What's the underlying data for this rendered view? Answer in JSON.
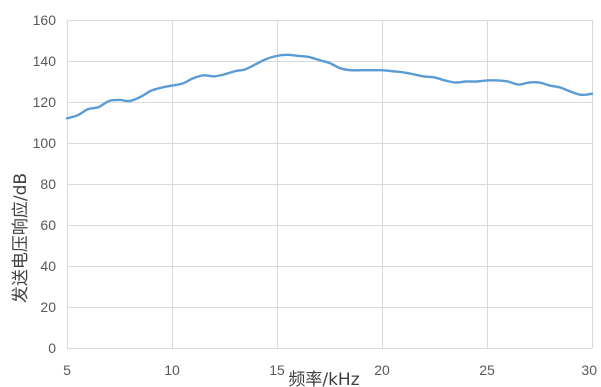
{
  "chart_data": {
    "type": "line",
    "title": "",
    "xlabel": "频率/kHz",
    "ylabel": "发送电压响应/dB",
    "xlim": [
      5,
      30
    ],
    "ylim": [
      0,
      160
    ],
    "x_ticks": [
      5,
      10,
      15,
      20,
      25,
      30
    ],
    "y_ticks": [
      0,
      20,
      40,
      60,
      80,
      100,
      120,
      140,
      160
    ],
    "grid": "both",
    "legend": "none",
    "series": [
      {
        "color": "#5b9bd5",
        "x": [
          5,
          5.5,
          6,
          6.5,
          7,
          7.5,
          8,
          8.5,
          9,
          9.5,
          10,
          10.5,
          11,
          11.5,
          12,
          12.5,
          13,
          13.5,
          14,
          14.5,
          15,
          15.5,
          16,
          16.5,
          17,
          17.5,
          18,
          18.5,
          19,
          19.5,
          20,
          20.5,
          21,
          21.5,
          22,
          22.5,
          23,
          23.5,
          24,
          24.5,
          25,
          25.5,
          26,
          26.5,
          27,
          27.5,
          28,
          28.5,
          29,
          29.5,
          30
        ],
        "y": [
          112,
          113.5,
          116.5,
          117.5,
          120.5,
          121,
          120.5,
          122.5,
          125.5,
          127,
          128,
          129,
          131.5,
          133,
          132.5,
          133.5,
          135,
          136,
          138.5,
          141,
          142.5,
          143,
          142.5,
          142,
          140.5,
          139,
          136.5,
          135.5,
          135.5,
          135.5,
          135.5,
          135,
          134.5,
          133.5,
          132.5,
          132,
          130.5,
          129.5,
          130,
          130,
          130.5,
          130.5,
          130,
          128.5,
          129.5,
          129.5,
          128,
          127,
          125,
          123.5,
          124
        ]
      }
    ]
  }
}
